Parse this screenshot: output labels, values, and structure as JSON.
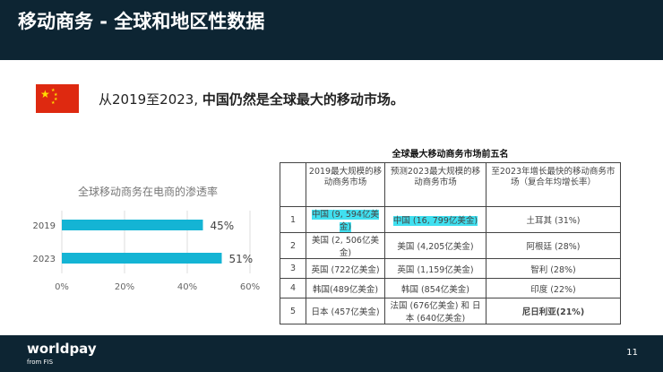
{
  "header": {
    "title": "移动商务 - 全球和地区性数据"
  },
  "subtitle": {
    "prefix": "从2019至2023,",
    "bold": "中国仍然是全球最大的移动市场。"
  },
  "chart_data": {
    "type": "bar",
    "orientation": "horizontal",
    "title": "全球移动商务在电商的渗透率",
    "categories": [
      "2019",
      "2023"
    ],
    "values": [
      45,
      51
    ],
    "data_labels": [
      "45%",
      "51%"
    ],
    "xlim": [
      0,
      60
    ],
    "xticks": [
      "0%",
      "20%",
      "40%",
      "60%"
    ],
    "grid": "vertical",
    "bar_color": "#14b4d4"
  },
  "table": {
    "title": "全球最大移动商务市场前五名",
    "headers": [
      "",
      "2019最大规模的移动商务市场",
      "预测2023最大规模的移动商务市场",
      "至2023年增长最快的移动商务市场（复合年均增长率）"
    ],
    "rows": [
      [
        "1",
        "中国 (9, 594亿美金)",
        "中国 (16, 799亿美金)",
        "土耳其 (31%)"
      ],
      [
        "2",
        "美国 (2, 506亿美金)",
        "美国 (4,205亿美金)",
        "阿根廷 (28%)"
      ],
      [
        "3",
        "英国 (722亿美金)",
        "英国 (1,159亿美金)",
        "智利 (28%)"
      ],
      [
        "4",
        "韩国(489亿美金)",
        "韩国  (854亿美金)",
        "印度 (22%)"
      ],
      [
        "5",
        "日本 (457亿美金)",
        "法国 (676亿美金) 和 日本 (640亿美金)",
        "尼日利亚(21%)"
      ]
    ],
    "highlight_color": "#40e0f0"
  },
  "footer": {
    "logo": "worldpay",
    "logo_sub": "from FIS",
    "page": "11"
  }
}
